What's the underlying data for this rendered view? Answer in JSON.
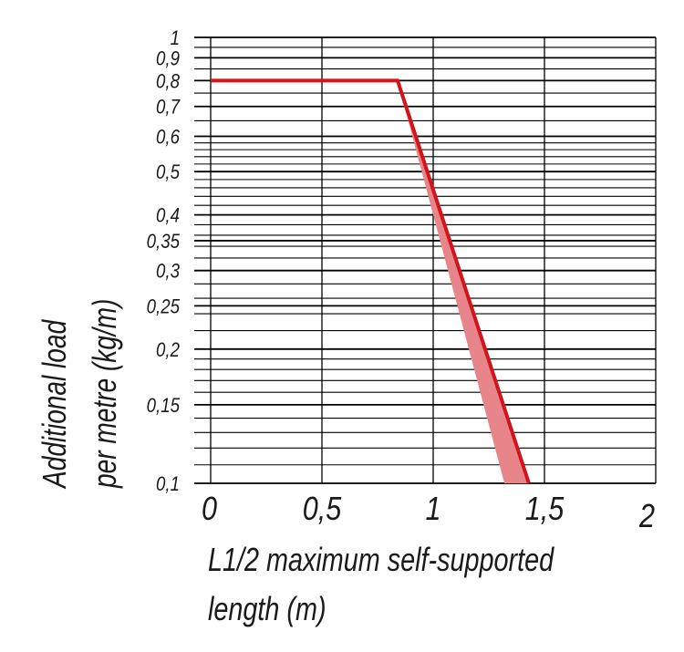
{
  "chart_data": {
    "type": "line",
    "xlabel": [
      "L1/2 maximum self-supported",
      "length (m)"
    ],
    "ylabel": [
      "Additional load",
      "per metre (kg/m)"
    ],
    "xlim": [
      0,
      2
    ],
    "ylim": [
      0.1,
      1
    ],
    "y_scale": "log",
    "grid": true,
    "x_ticks": [
      {
        "value": 0,
        "label": "0"
      },
      {
        "value": 0.5,
        "label": "0,5"
      },
      {
        "value": 1,
        "label": "1"
      },
      {
        "value": 1.5,
        "label": "1,5"
      },
      {
        "value": 2,
        "label": "2"
      }
    ],
    "y_ticks": [
      {
        "value": 1,
        "label": "1"
      },
      {
        "value": 0.9,
        "label": "0,9"
      },
      {
        "value": 0.8,
        "label": "0,8"
      },
      {
        "value": 0.7,
        "label": "0,7"
      },
      {
        "value": 0.6,
        "label": "0,6"
      },
      {
        "value": 0.5,
        "label": "0,5"
      },
      {
        "value": 0.4,
        "label": "0,4"
      },
      {
        "value": 0.35,
        "label": "0,35"
      },
      {
        "value": 0.3,
        "label": "0,3"
      },
      {
        "value": 0.25,
        "label": "0,25"
      },
      {
        "value": 0.2,
        "label": "0,2"
      },
      {
        "value": 0.15,
        "label": "0,15"
      },
      {
        "value": 0.1,
        "label": "0,1"
      }
    ],
    "series": [
      {
        "x": [
          0,
          0.84,
          1.43
        ],
        "y": [
          0.8,
          0.8,
          0.1
        ],
        "color": "#d0161c"
      }
    ],
    "band": {
      "x_upper": [
        0.84,
        1.43
      ],
      "y_upper": [
        0.8,
        0.1
      ],
      "x_lower": [
        1.32,
        0.84
      ],
      "y_lower": [
        0.1,
        0.8
      ],
      "color": "#e8858a"
    }
  }
}
